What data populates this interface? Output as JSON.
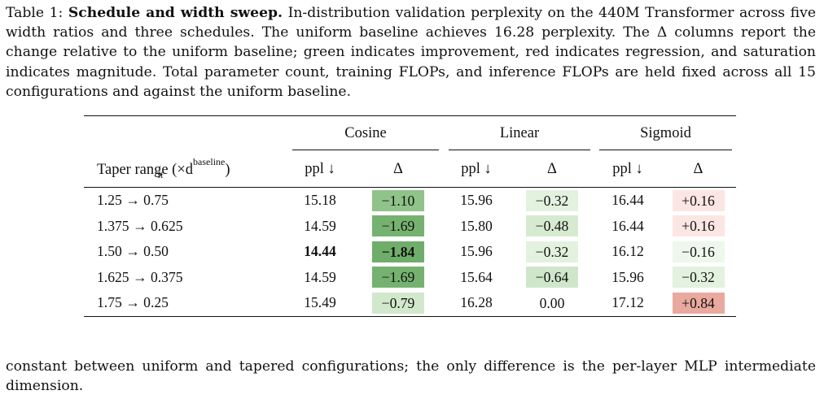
{
  "caption": {
    "label": "Table 1:",
    "title": "Schedule and width sweep.",
    "text": "In-distribution validation perplexity on the 440M Transformer across five width ratios and three schedules. The uniform baseline achieves 16.28 perplexity. The Δ columns report the change relative to the uniform baseline; green indicates improvement, red indicates regression, and saturation indicates magnitude. Total parameter count, training FLOPs, and inference FLOPs are held fixed across all 15 configurations and against the uniform baseline."
  },
  "table": {
    "group_headers": [
      "Cosine",
      "Linear",
      "Sigmoid"
    ],
    "row_header_main": "Taper range (×d",
    "row_header_sub": "ff",
    "row_header_sup": "baseline",
    "row_header_close": ")",
    "col_ppl": "ppl ↓",
    "col_delta": "Δ",
    "colors": {
      "green_strong": "#6fae6a",
      "green_mid": "#8fc389",
      "green_light": "#cfe6ca",
      "green_pale": "#e3f1df",
      "green_faint": "#eef7ec",
      "red_faint": "#fbe6e3",
      "red_mid": "#e9a99e"
    },
    "rows": [
      {
        "range": "1.25 → 0.75",
        "cos_ppl": "15.18",
        "cos_delta": "−1.10",
        "lin_ppl": "15.96",
        "lin_delta": "−0.32",
        "sig_ppl": "16.44",
        "sig_delta": "+0.16"
      },
      {
        "range": "1.375 → 0.625",
        "cos_ppl": "14.59",
        "cos_delta": "−1.69",
        "lin_ppl": "15.80",
        "lin_delta": "−0.48",
        "sig_ppl": "16.44",
        "sig_delta": "+0.16"
      },
      {
        "range": "1.50 → 0.50",
        "cos_ppl": "14.44",
        "cos_delta": "−1.84",
        "lin_ppl": "15.96",
        "lin_delta": "−0.32",
        "sig_ppl": "16.12",
        "sig_delta": "−0.16"
      },
      {
        "range": "1.625 → 0.375",
        "cos_ppl": "14.59",
        "cos_delta": "−1.69",
        "lin_ppl": "15.64",
        "lin_delta": "−0.64",
        "sig_ppl": "15.96",
        "sig_delta": "−0.32"
      },
      {
        "range": "1.75 → 0.25",
        "cos_ppl": "15.49",
        "cos_delta": "−0.79",
        "lin_ppl": "16.28",
        "lin_delta": "0.00",
        "sig_ppl": "17.12",
        "sig_delta": "+0.84"
      }
    ]
  },
  "footer": "constant between uniform and tapered configurations; the only difference is the per-layer MLP intermediate dimension."
}
